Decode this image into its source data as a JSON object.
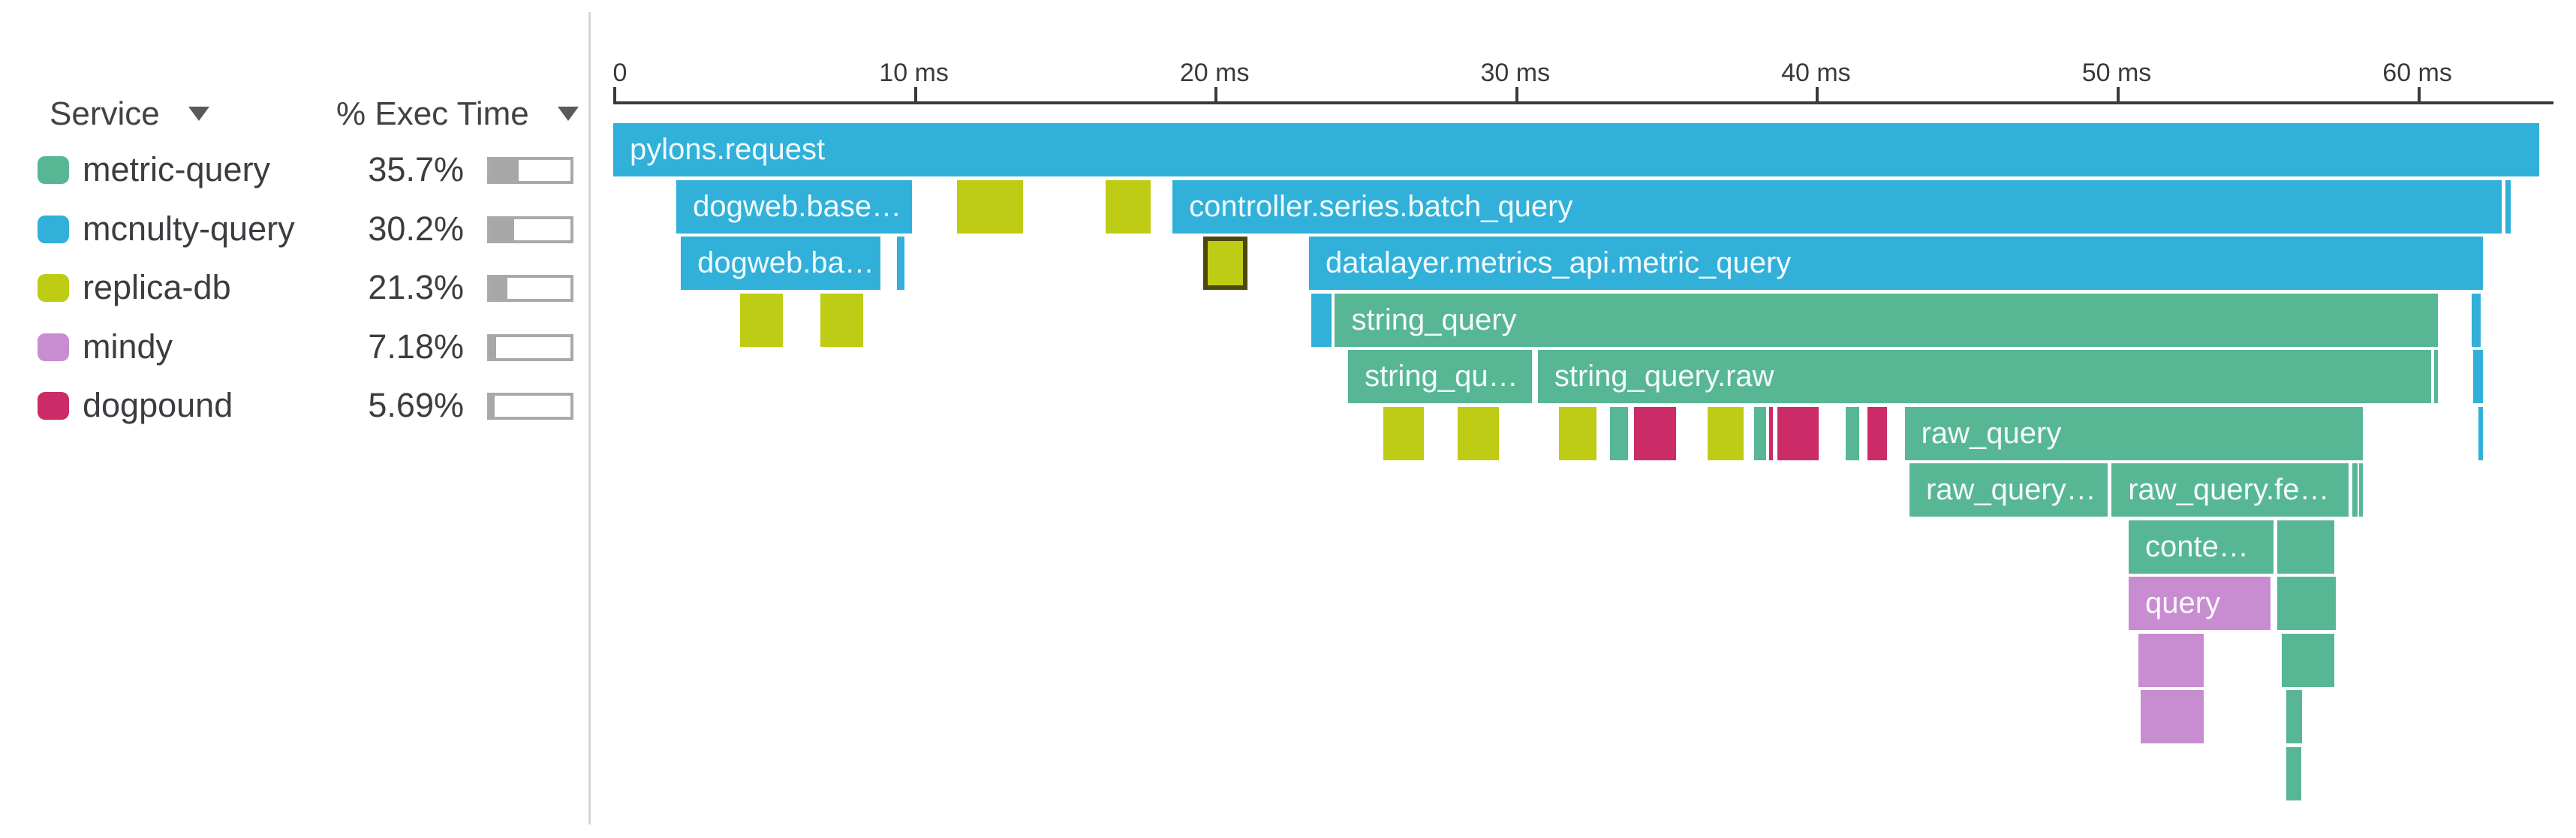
{
  "panel": {
    "columns": [
      {
        "label": "Service"
      },
      {
        "label": "% Exec Time"
      }
    ],
    "services": [
      {
        "name": "metric-query",
        "color": "#57b795",
        "pct_label": "35.7%",
        "pct": 35.7
      },
      {
        "name": "mcnulty-query",
        "color": "#31b0d9",
        "pct_label": "30.2%",
        "pct": 30.2
      },
      {
        "name": "replica-db",
        "color": "#bfcc16",
        "pct_label": "21.3%",
        "pct": 21.3
      },
      {
        "name": "mindy",
        "color": "#c88cd0",
        "pct_label": "7.18%",
        "pct": 7.18
      },
      {
        "name": "dogpound",
        "color": "#cb2c67",
        "pct_label": "5.69%",
        "pct": 5.69
      }
    ]
  },
  "chart_data": {
    "type": "flamegraph",
    "title": "",
    "x_axis": {
      "unit": "ms",
      "range_ms": [
        0,
        64.1
      ],
      "ticks": [
        {
          "ms": 0,
          "label": "0"
        },
        {
          "ms": 10,
          "label": "10 ms"
        },
        {
          "ms": 20,
          "label": "20 ms"
        },
        {
          "ms": 30,
          "label": "30 ms"
        },
        {
          "ms": 40,
          "label": "40 ms"
        },
        {
          "ms": 50,
          "label": "50 ms"
        },
        {
          "ms": 60,
          "label": "60 ms"
        }
      ]
    },
    "legend_position": "left",
    "selected_span_border_color": "#4b480f",
    "spans": [
      {
        "row": 1,
        "start_ms": 0.0,
        "end_ms": 64.06,
        "service": "mcnulty-query",
        "label": "pylons.request"
      },
      {
        "row": 2,
        "start_ms": 2.1,
        "end_ms": 9.93,
        "service": "mcnulty-query",
        "label": "dogweb.base…"
      },
      {
        "row": 2,
        "start_ms": 11.43,
        "end_ms": 13.63,
        "service": "replica-db",
        "label": ""
      },
      {
        "row": 2,
        "start_ms": 16.38,
        "end_ms": 17.87,
        "service": "replica-db",
        "label": ""
      },
      {
        "row": 2,
        "start_ms": 18.6,
        "end_ms": 62.81,
        "service": "mcnulty-query",
        "label": "controller.series.batch_query"
      },
      {
        "row": 2,
        "start_ms": 62.93,
        "end_ms": 63.11,
        "service": "mcnulty-query",
        "label": ""
      },
      {
        "row": 3,
        "start_ms": 2.25,
        "end_ms": 8.89,
        "service": "mcnulty-query",
        "label": "dogweb.ba…"
      },
      {
        "row": 3,
        "start_ms": 9.44,
        "end_ms": 9.69,
        "service": "mcnulty-query",
        "label": ""
      },
      {
        "row": 3,
        "start_ms": 19.62,
        "end_ms": 21.09,
        "service": "replica-db",
        "label": "",
        "selected": true
      },
      {
        "row": 3,
        "start_ms": 23.14,
        "end_ms": 62.18,
        "service": "mcnulty-query",
        "label": "datalayer.metrics_api.metric_query"
      },
      {
        "row": 4,
        "start_ms": 4.22,
        "end_ms": 5.64,
        "service": "replica-db",
        "label": ""
      },
      {
        "row": 4,
        "start_ms": 6.89,
        "end_ms": 8.31,
        "service": "replica-db",
        "label": ""
      },
      {
        "row": 4,
        "start_ms": 23.21,
        "end_ms": 23.9,
        "service": "mcnulty-query",
        "label": ""
      },
      {
        "row": 4,
        "start_ms": 24.0,
        "end_ms": 60.68,
        "service": "metric-query",
        "label": "string_query"
      },
      {
        "row": 4,
        "start_ms": 61.81,
        "end_ms": 62.11,
        "service": "mcnulty-query",
        "label": ""
      },
      {
        "row": 5,
        "start_ms": 24.44,
        "end_ms": 30.55,
        "service": "metric-query",
        "label": "string_qu…"
      },
      {
        "row": 5,
        "start_ms": 30.75,
        "end_ms": 60.46,
        "service": "metric-query",
        "label": "string_query.raw"
      },
      {
        "row": 5,
        "start_ms": 60.56,
        "end_ms": 60.68,
        "service": "metric-query",
        "label": ""
      },
      {
        "row": 5,
        "start_ms": 61.86,
        "end_ms": 62.18,
        "service": "mcnulty-query",
        "label": ""
      },
      {
        "row": 6,
        "start_ms": 25.61,
        "end_ms": 26.95,
        "service": "replica-db",
        "label": ""
      },
      {
        "row": 6,
        "start_ms": 28.08,
        "end_ms": 29.45,
        "service": "replica-db",
        "label": ""
      },
      {
        "row": 6,
        "start_ms": 31.45,
        "end_ms": 32.7,
        "service": "replica-db",
        "label": ""
      },
      {
        "row": 6,
        "start_ms": 33.15,
        "end_ms": 33.75,
        "service": "metric-query",
        "label": ""
      },
      {
        "row": 6,
        "start_ms": 33.95,
        "end_ms": 35.35,
        "service": "dogpound",
        "label": ""
      },
      {
        "row": 6,
        "start_ms": 36.4,
        "end_ms": 37.6,
        "service": "replica-db",
        "label": ""
      },
      {
        "row": 6,
        "start_ms": 37.95,
        "end_ms": 38.35,
        "service": "metric-query",
        "label": ""
      },
      {
        "row": 6,
        "start_ms": 38.43,
        "end_ms": 38.57,
        "service": "dogpound",
        "label": ""
      },
      {
        "row": 6,
        "start_ms": 38.72,
        "end_ms": 40.1,
        "service": "dogpound",
        "label": ""
      },
      {
        "row": 6,
        "start_ms": 41.0,
        "end_ms": 41.45,
        "service": "metric-query",
        "label": ""
      },
      {
        "row": 6,
        "start_ms": 41.72,
        "end_ms": 42.35,
        "service": "dogpound",
        "label": ""
      },
      {
        "row": 6,
        "start_ms": 42.95,
        "end_ms": 58.19,
        "service": "metric-query",
        "label": "raw_query"
      },
      {
        "row": 6,
        "start_ms": 62.03,
        "end_ms": 62.18,
        "service": "mcnulty-query",
        "label": ""
      },
      {
        "row": 7,
        "start_ms": 43.11,
        "end_ms": 49.7,
        "service": "metric-query",
        "label": "raw_query…"
      },
      {
        "row": 7,
        "start_ms": 49.83,
        "end_ms": 57.72,
        "service": "metric-query",
        "label": "raw_query.fe…"
      },
      {
        "row": 7,
        "start_ms": 57.84,
        "end_ms": 58.02,
        "service": "metric-query",
        "label": ""
      },
      {
        "row": 7,
        "start_ms": 58.07,
        "end_ms": 58.19,
        "service": "metric-query",
        "label": ""
      },
      {
        "row": 8,
        "start_ms": 50.4,
        "end_ms": 55.22,
        "service": "metric-query",
        "label": "conte…"
      },
      {
        "row": 8,
        "start_ms": 55.35,
        "end_ms": 57.24,
        "service": "metric-query",
        "label": ""
      },
      {
        "row": 9,
        "start_ms": 50.4,
        "end_ms": 55.12,
        "service": "mindy",
        "label": "query"
      },
      {
        "row": 9,
        "start_ms": 55.35,
        "end_ms": 57.29,
        "service": "metric-query",
        "label": ""
      },
      {
        "row": 10,
        "start_ms": 50.72,
        "end_ms": 52.9,
        "service": "mindy",
        "label": ""
      },
      {
        "row": 10,
        "start_ms": 55.5,
        "end_ms": 57.24,
        "service": "metric-query",
        "label": ""
      },
      {
        "row": 11,
        "start_ms": 50.8,
        "end_ms": 52.9,
        "service": "mindy",
        "label": ""
      },
      {
        "row": 11,
        "start_ms": 55.65,
        "end_ms": 56.17,
        "service": "metric-query",
        "label": ""
      },
      {
        "row": 12,
        "start_ms": 55.65,
        "end_ms": 56.15,
        "service": "metric-query",
        "label": ""
      }
    ]
  }
}
